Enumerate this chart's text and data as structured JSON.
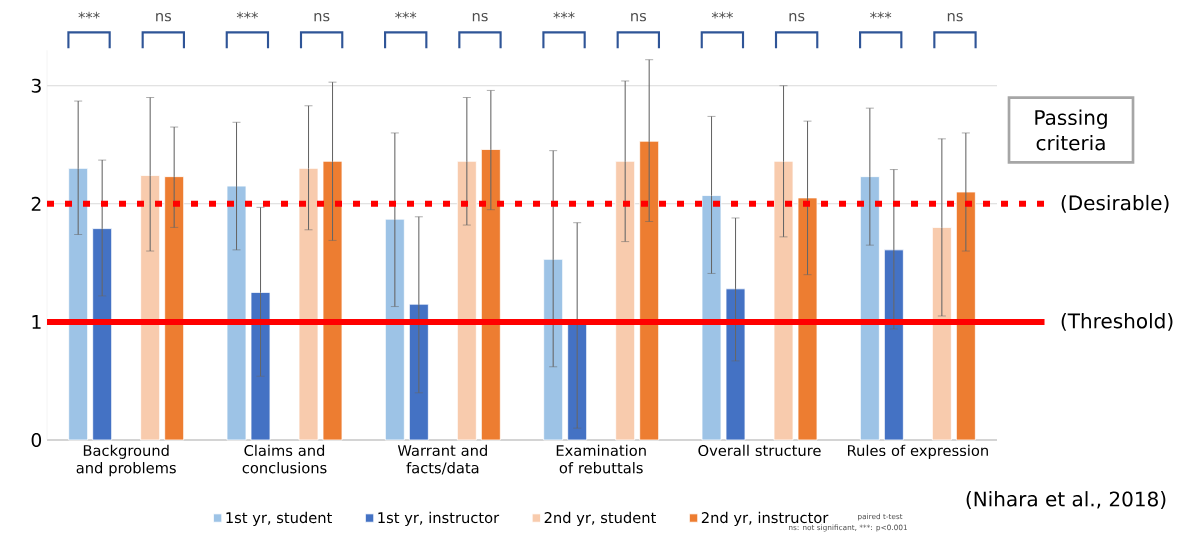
{
  "chart_data": {
    "type": "bar",
    "categories": [
      "Background and problems",
      "Claims and conclusions",
      "Warrant and facts/data",
      "Examination of rebuttals",
      "Overall structure",
      "Rules of expression"
    ],
    "series": [
      {
        "name": "1st yr, student",
        "color": "#9dc3e6",
        "values": [
          2.3,
          2.15,
          1.87,
          1.53,
          2.07,
          2.23
        ],
        "errors": [
          [
            1.74,
            2.87
          ],
          [
            1.61,
            2.69
          ],
          [
            1.13,
            2.6
          ],
          [
            0.62,
            2.45
          ],
          [
            1.41,
            2.74
          ],
          [
            1.65,
            2.81
          ]
        ]
      },
      {
        "name": "1st yr, instructor",
        "color": "#4472c4",
        "values": [
          1.79,
          1.25,
          1.15,
          0.98,
          1.28,
          1.61
        ],
        "errors": [
          [
            1.22,
            2.37
          ],
          [
            0.54,
            1.97
          ],
          [
            0.4,
            1.89
          ],
          [
            0.1,
            1.84
          ],
          [
            0.67,
            1.88
          ],
          [
            0.94,
            2.29
          ]
        ]
      },
      {
        "name": "2nd yr, student",
        "color": "#f8cbad",
        "values": [
          2.24,
          2.3,
          2.36,
          2.36,
          2.36,
          1.8
        ],
        "errors": [
          [
            1.6,
            2.9
          ],
          [
            1.78,
            2.83
          ],
          [
            1.82,
            2.9
          ],
          [
            1.68,
            3.04
          ],
          [
            1.72,
            3.0
          ],
          [
            1.05,
            2.55
          ]
        ]
      },
      {
        "name": "2nd yr, instructor",
        "color": "#ed7d31",
        "values": [
          2.23,
          2.36,
          2.46,
          2.53,
          2.05,
          2.1
        ],
        "errors": [
          [
            1.8,
            2.65
          ],
          [
            1.69,
            3.03
          ],
          [
            1.95,
            2.96
          ],
          [
            1.85,
            3.22
          ],
          [
            1.4,
            2.7
          ],
          [
            1.6,
            2.6
          ]
        ]
      }
    ],
    "ylim": [
      0,
      3.3
    ],
    "yticks": [
      0,
      1,
      2,
      3
    ],
    "grid": "y",
    "legend": "bottom",
    "ref_lines": [
      {
        "axis": "y",
        "value": 2,
        "label": "(Desirable)",
        "color": "#ff0000",
        "line_style": "dotted"
      },
      {
        "axis": "y",
        "value": 1,
        "label": "(Threshold)",
        "color": "#ff0000",
        "line_style": "solid"
      }
    ],
    "annotations": [
      "***",
      "ns",
      "***",
      "ns",
      "***",
      "ns",
      "***",
      "ns",
      "***",
      "ns",
      "***",
      "ns",
      "Passing criteria",
      "(Nihara et al., 2018)",
      "paired t-test",
      "ns: not significant, ***: p<0.001"
    ]
  }
}
